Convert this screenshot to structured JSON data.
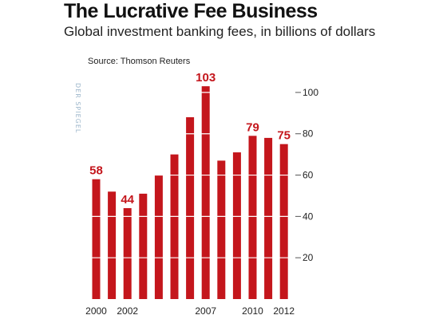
{
  "header": {
    "title": "The Lucrative Fee Business",
    "subtitle": "Global investment banking fees, in billions of dollars",
    "source": "Source: Thomson Reuters",
    "watermark": "DER SPIEGEL"
  },
  "colors": {
    "bar": "#c4161c",
    "highlight_label": "#c4161c",
    "gridline": "#ffffff",
    "text": "#222222"
  },
  "chart_data": {
    "type": "bar",
    "title": "The Lucrative Fee Business",
    "subtitle": "Global investment banking fees, in billions of dollars",
    "xlabel": "",
    "ylabel": "",
    "categories": [
      "2000",
      "2001",
      "2002",
      "2003",
      "2004",
      "2005",
      "2006",
      "2007",
      "2008",
      "2009",
      "2010",
      "2011",
      "2012"
    ],
    "values": [
      58,
      52,
      44,
      51,
      60,
      70,
      88,
      103,
      67,
      71,
      79,
      78,
      75
    ],
    "value_labels": [
      {
        "category": "2000",
        "text": "58"
      },
      {
        "category": "2002",
        "text": "44"
      },
      {
        "category": "2007",
        "text": "103"
      },
      {
        "category": "2010",
        "text": "79"
      },
      {
        "category": "2012",
        "text": "75"
      }
    ],
    "x_tick_labels": [
      "2000",
      "2002",
      "2007",
      "2010",
      "2012"
    ],
    "y_ticks": [
      20,
      40,
      60,
      80,
      100
    ],
    "ylim": [
      0,
      110
    ],
    "y_axis_side": "right",
    "grid": "horizontal white lines through bars"
  }
}
